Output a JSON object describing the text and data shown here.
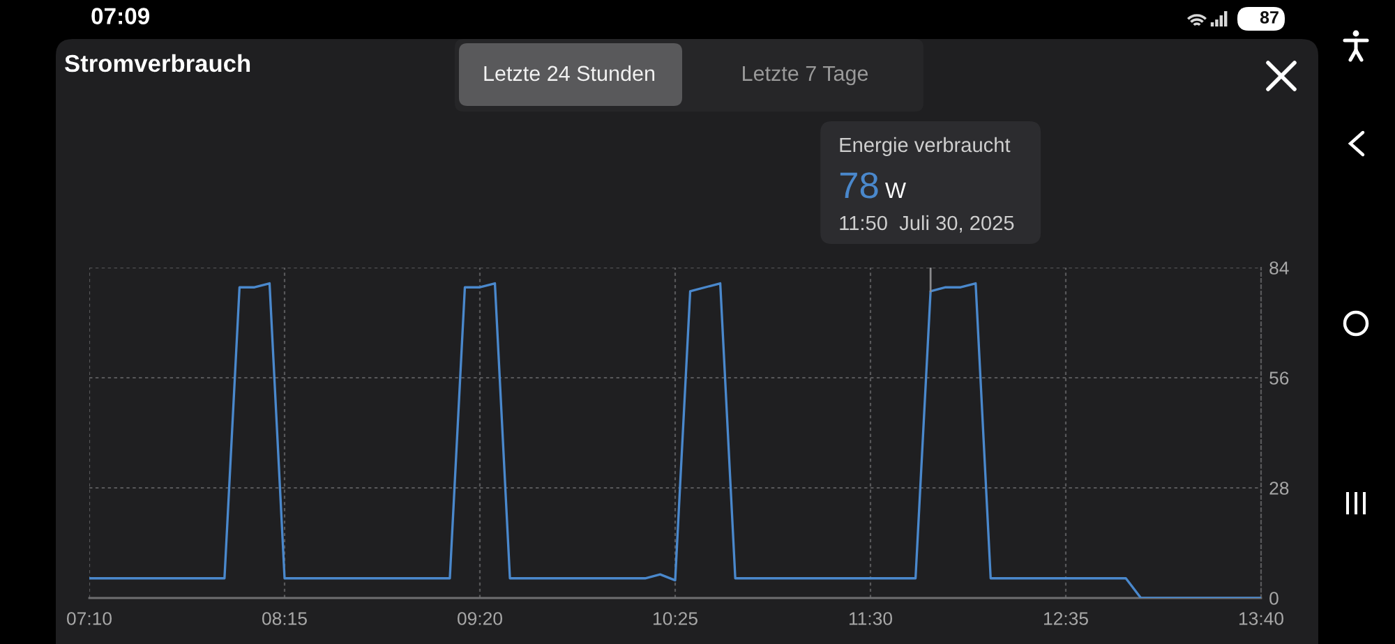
{
  "chart_data": {
    "type": "line",
    "title": "Stromverbrauch",
    "x": [
      "2025-07-30T07:10",
      "2025-07-30T07:55",
      "2025-07-30T08:00",
      "2025-07-30T08:05",
      "2025-07-30T08:10",
      "2025-07-30T08:15",
      "2025-07-30T09:10",
      "2025-07-30T09:15",
      "2025-07-30T09:20",
      "2025-07-30T09:25",
      "2025-07-30T09:30",
      "2025-07-30T10:15",
      "2025-07-30T10:20",
      "2025-07-30T10:25",
      "2025-07-30T10:30",
      "2025-07-30T10:40",
      "2025-07-30T10:45",
      "2025-07-30T11:45",
      "2025-07-30T11:50",
      "2025-07-30T11:55",
      "2025-07-30T12:00",
      "2025-07-30T12:05",
      "2025-07-30T12:10",
      "2025-07-30T12:55",
      "2025-07-30T13:00",
      "2025-07-30T13:40"
    ],
    "values": [
      5,
      5,
      79,
      79,
      80,
      5,
      5,
      79,
      79,
      80,
      5,
      5,
      6,
      4.5,
      78,
      80,
      5,
      5,
      78,
      79,
      79,
      80,
      5,
      5,
      0,
      0
    ],
    "color": "#4a88cc",
    "xlim": [
      "2025-07-30T07:10",
      "2025-07-30T13:40"
    ],
    "xticks": [
      {
        "value": "2025-07-30T07:10",
        "label": "07:10"
      },
      {
        "value": "2025-07-30T08:15",
        "label": "08:15"
      },
      {
        "value": "2025-07-30T09:20",
        "label": "09:20"
      },
      {
        "value": "2025-07-30T10:25",
        "label": "10:25"
      },
      {
        "value": "2025-07-30T11:30",
        "label": "11:30"
      },
      {
        "value": "2025-07-30T12:35",
        "label": "12:35"
      },
      {
        "value": "2025-07-30T13:40",
        "label": "13:40"
      }
    ],
    "ylim": [
      0,
      84
    ],
    "yticks": [
      0,
      28,
      56,
      84
    ],
    "grid": true,
    "annotations": [
      "Letzte 24 Stunden",
      "Letzte 7 Tage",
      {
        "text": "Energie verbraucht\n78 W\n11:50  Juli 30, 2025",
        "x": "2025-07-30T11:50",
        "y": 78
      },
      "07:09",
      "87"
    ]
  }
}
